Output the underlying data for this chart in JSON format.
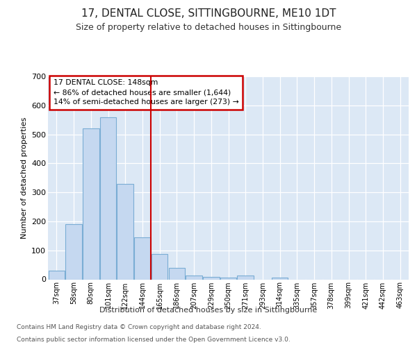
{
  "title": "17, DENTAL CLOSE, SITTINGBOURNE, ME10 1DT",
  "subtitle": "Size of property relative to detached houses in Sittingbourne",
  "xlabel": "Distribution of detached houses by size in Sittingbourne",
  "ylabel": "Number of detached properties",
  "footnote1": "Contains HM Land Registry data © Crown copyright and database right 2024.",
  "footnote2": "Contains public sector information licensed under the Open Government Licence v3.0.",
  "annotation_title": "17 DENTAL CLOSE: 148sqm",
  "annotation_line1": "← 86% of detached houses are smaller (1,644)",
  "annotation_line2": "14% of semi-detached houses are larger (273) →",
  "categories": [
    "37sqm",
    "58sqm",
    "80sqm",
    "101sqm",
    "122sqm",
    "144sqm",
    "165sqm",
    "186sqm",
    "207sqm",
    "229sqm",
    "250sqm",
    "271sqm",
    "293sqm",
    "314sqm",
    "335sqm",
    "357sqm",
    "378sqm",
    "399sqm",
    "421sqm",
    "442sqm",
    "463sqm"
  ],
  "values": [
    30,
    190,
    520,
    560,
    330,
    145,
    88,
    40,
    12,
    8,
    5,
    12,
    0,
    5,
    0,
    0,
    0,
    0,
    0,
    0,
    0
  ],
  "bar_color": "#c5d8f0",
  "bar_edge_color": "#7aadd4",
  "vline_x": 5.5,
  "vline_color": "#cc0000",
  "fig_bg_color": "#ffffff",
  "plot_bg_color": "#dce8f5",
  "annotation_box_color": "#ffffff",
  "annotation_box_edge": "#cc0000",
  "ylim": [
    0,
    700
  ],
  "yticks": [
    0,
    100,
    200,
    300,
    400,
    500,
    600,
    700
  ],
  "title_fontsize": 11,
  "subtitle_fontsize": 9
}
